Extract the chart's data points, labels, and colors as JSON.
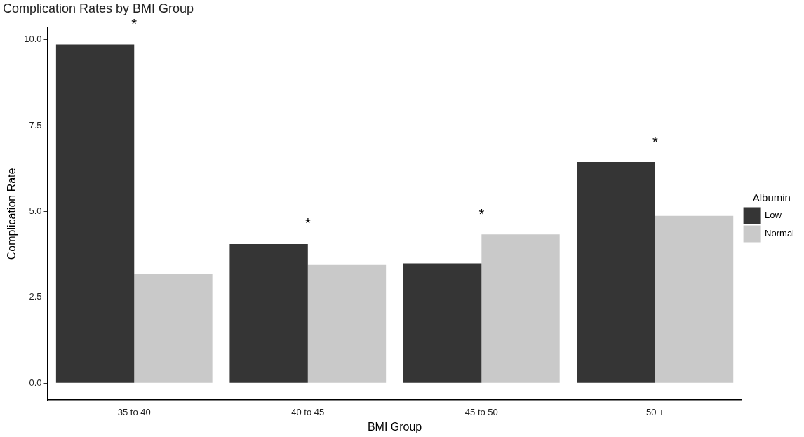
{
  "chart_data": {
    "type": "bar",
    "title": "Complication Rates by BMI Group",
    "xlabel": "BMI Group",
    "ylabel": "Complication Rate",
    "legend_title": "Albumin",
    "categories": [
      "35 to 40",
      "40 to 45",
      "45 to 50",
      "50 +"
    ],
    "series": [
      {
        "name": "Low",
        "color": "#353535",
        "values": [
          9.86,
          4.05,
          3.49,
          6.44
        ]
      },
      {
        "name": "Normal",
        "color": "#c9c9c9",
        "values": [
          3.19,
          3.44,
          4.33,
          4.87
        ]
      }
    ],
    "ylim": [
      -0.49,
      10.35
    ],
    "yticks": [
      {
        "value": 0,
        "label": "0.0"
      },
      {
        "value": 2.5,
        "label": "2.5"
      },
      {
        "value": 5,
        "label": "5.0"
      },
      {
        "value": 7.5,
        "label": "7.5"
      },
      {
        "value": 10,
        "label": "10.0"
      }
    ],
    "annotations": [
      "*",
      "*",
      "*",
      "*"
    ],
    "grid": false,
    "legend": "right"
  }
}
